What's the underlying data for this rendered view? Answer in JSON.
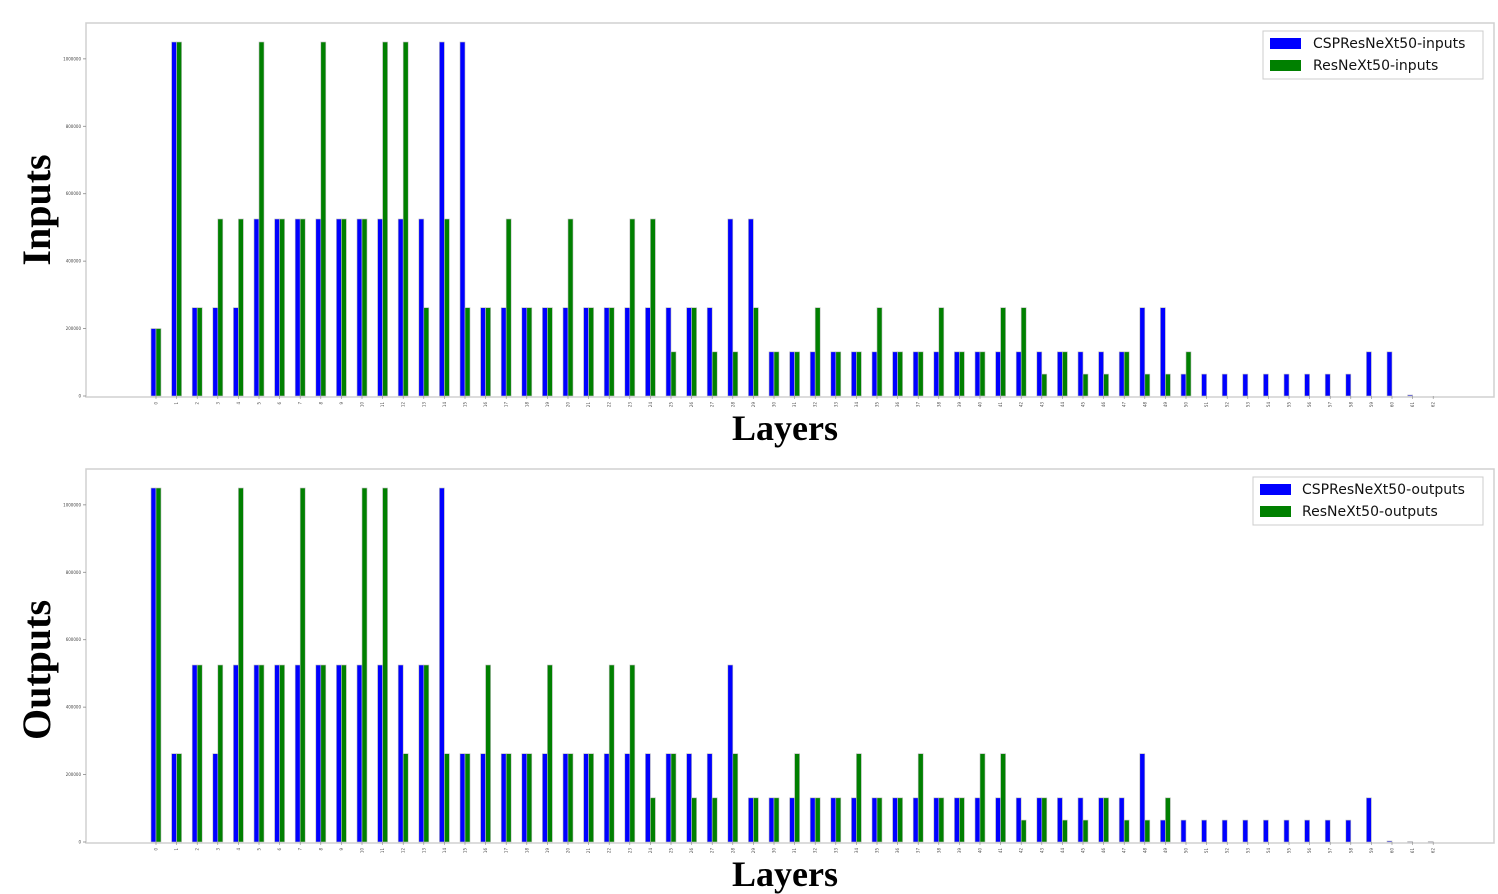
{
  "chart_data": [
    {
      "type": "bar",
      "xlabel": "Layers",
      "ylabel": "Inputs",
      "ylim": [
        0,
        1100000
      ],
      "legend": "top-right",
      "colors": [
        "#0000ff",
        "#008000"
      ],
      "series": [
        {
          "name": "CSPResNeXt50-inputs",
          "values": [
            200000,
            1050000,
            262000,
            262000,
            262000,
            525000,
            525000,
            525000,
            525000,
            525000,
            525000,
            525000,
            525000,
            525000,
            1050000,
            1050000,
            262000,
            262000,
            262000,
            262000,
            262000,
            262000,
            262000,
            262000,
            262000,
            262000,
            262000,
            262000,
            525000,
            525000,
            131000,
            131000,
            131000,
            131000,
            131000,
            131000,
            131000,
            131000,
            131000,
            131000,
            131000,
            131000,
            131000,
            131000,
            131000,
            131000,
            131000,
            131000,
            262000,
            262000,
            65000,
            65000,
            65000,
            65000,
            65000,
            65000,
            65000,
            65000,
            65000,
            131000,
            131000,
            3000,
            0
          ]
        },
        {
          "name": "ResNeXt50-inputs",
          "values": [
            200000,
            1050000,
            262000,
            525000,
            525000,
            1050000,
            525000,
            525000,
            1050000,
            525000,
            525000,
            1050000,
            1050000,
            262000,
            525000,
            262000,
            262000,
            525000,
            262000,
            262000,
            525000,
            262000,
            262000,
            525000,
            525000,
            131000,
            262000,
            131000,
            131000,
            262000,
            131000,
            131000,
            262000,
            131000,
            131000,
            262000,
            131000,
            131000,
            262000,
            131000,
            131000,
            262000,
            262000,
            65000,
            131000,
            65000,
            65000,
            131000,
            65000,
            65000,
            131000,
            0,
            0,
            0,
            0,
            0,
            0,
            0,
            0,
            0,
            0,
            0,
            0
          ]
        }
      ]
    },
    {
      "type": "bar",
      "xlabel": "Layers",
      "ylabel": "Outputs",
      "ylim": [
        0,
        1100000
      ],
      "legend": "top-right",
      "colors": [
        "#0000ff",
        "#008000"
      ],
      "series": [
        {
          "name": "CSPResNeXt50-outputs",
          "values": [
            1050000,
            262000,
            525000,
            262000,
            525000,
            525000,
            525000,
            525000,
            525000,
            525000,
            525000,
            525000,
            525000,
            525000,
            1050000,
            262000,
            262000,
            262000,
            262000,
            262000,
            262000,
            262000,
            262000,
            262000,
            262000,
            262000,
            262000,
            262000,
            525000,
            131000,
            131000,
            131000,
            131000,
            131000,
            131000,
            131000,
            131000,
            131000,
            131000,
            131000,
            131000,
            131000,
            131000,
            131000,
            131000,
            131000,
            131000,
            131000,
            262000,
            65000,
            65000,
            65000,
            65000,
            65000,
            65000,
            65000,
            65000,
            65000,
            65000,
            131000,
            3000,
            1500,
            1500
          ]
        },
        {
          "name": "ResNeXt50-outputs",
          "values": [
            1050000,
            262000,
            525000,
            525000,
            1050000,
            525000,
            525000,
            1050000,
            525000,
            525000,
            1050000,
            1050000,
            262000,
            525000,
            262000,
            262000,
            525000,
            262000,
            262000,
            525000,
            262000,
            262000,
            525000,
            525000,
            131000,
            262000,
            131000,
            131000,
            262000,
            131000,
            131000,
            262000,
            131000,
            131000,
            262000,
            131000,
            131000,
            262000,
            131000,
            131000,
            262000,
            262000,
            65000,
            131000,
            65000,
            65000,
            131000,
            65000,
            65000,
            131000,
            0,
            0,
            0,
            0,
            0,
            0,
            0,
            0,
            0,
            0,
            0,
            0,
            0
          ]
        }
      ]
    }
  ]
}
